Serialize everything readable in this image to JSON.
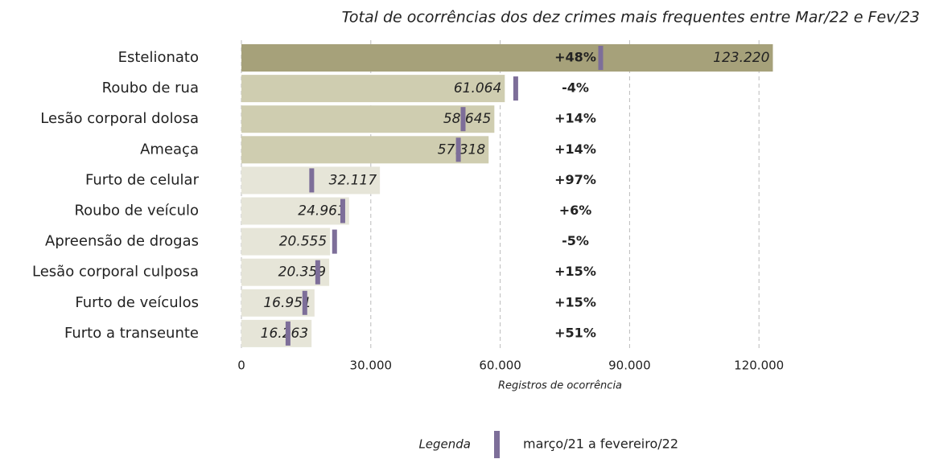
{
  "chart_data": {
    "type": "hbar",
    "title": "Total de ocorrências dos dez crimes mais frequentes entre Mar/22 e Fev/23",
    "categories": [
      "Estelionato",
      "Roubo de rua",
      "Lesão corporal dolosa",
      "Ameaça",
      "Furto de celular",
      "Roubo de veículo",
      "Apreensão de drogas",
      "Lesão corporal culposa",
      "Furto de veículos",
      "Furto a transeunte"
    ],
    "values": [
      123220,
      61064,
      58645,
      57318,
      32117,
      24961,
      20555,
      20359,
      16951,
      16263
    ],
    "value_labels": [
      "123.220",
      "61.064",
      "58.645",
      "57.318",
      "32.117",
      "24.961",
      "20.555",
      "20.359",
      "16.951",
      "16.263"
    ],
    "bar_colors": [
      "#a6a17a",
      "#cfcdb0",
      "#cfcdb0",
      "#cfcdb0",
      "#e6e5d8",
      "#e6e5d8",
      "#e6e5d8",
      "#e6e5d8",
      "#e6e5d8",
      "#e6e5d8"
    ],
    "previous": {
      "name": "março/21 a fevereiro/22",
      "color": "#7d6e99",
      "values": [
        83300,
        63600,
        51400,
        50300,
        16300,
        23500,
        21600,
        17700,
        14700,
        10800
      ]
    },
    "changes": {
      "values": [
        48,
        -4,
        14,
        14,
        97,
        6,
        -5,
        15,
        15,
        51
      ],
      "labels": [
        "+48%",
        "-4%",
        "+14%",
        "+14%",
        "+97%",
        "+6%",
        "-5%",
        "+15%",
        "+15%",
        "+51%"
      ]
    },
    "positive_color": "#b23c17",
    "negative_color": "#263a55",
    "legend_title": "Legenda",
    "xlabel": "Registros de ocorrência",
    "xlim": [
      0,
      125000
    ],
    "xticks": [
      0,
      {
        "value": 30000,
        "label": "30.000"
      },
      {
        "value": 60000,
        "label": "60.000"
      },
      {
        "value": 90000,
        "label": "90.000"
      },
      {
        "value": 120000,
        "label": "120.000"
      }
    ],
    "grid": true
  }
}
